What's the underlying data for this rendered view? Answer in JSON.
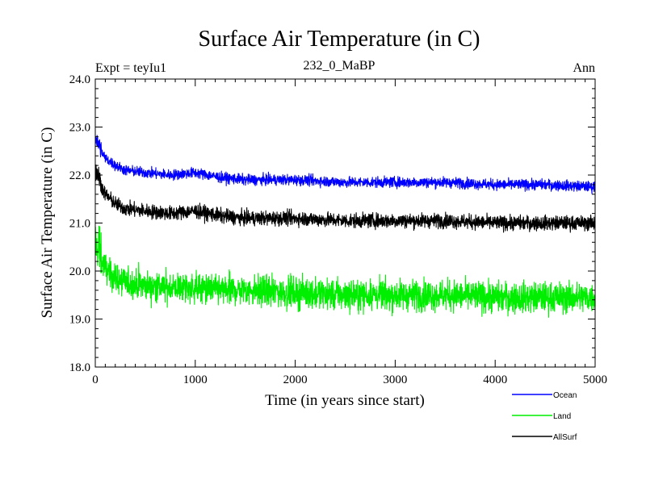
{
  "chart_data": {
    "type": "line",
    "title": "Surface Air Temperature (in C)",
    "subtitle": "232_0_MaBP",
    "left_label": "Expt = teyIu1",
    "right_label": "Ann",
    "xlabel": "Time (in years since start)",
    "ylabel": "Surface Air Temperature (in C)",
    "xlim": [
      0,
      5000
    ],
    "ylim": [
      18.0,
      24.0
    ],
    "x_ticks": [
      0,
      1000,
      2000,
      3000,
      4000,
      5000
    ],
    "x_tick_labels": [
      "0",
      "1000",
      "2000",
      "3000",
      "4000",
      "5000"
    ],
    "y_ticks": [
      18.0,
      19.0,
      20.0,
      21.0,
      22.0,
      23.0,
      24.0
    ],
    "y_tick_labels": [
      "18.0",
      "19.0",
      "20.0",
      "21.0",
      "22.0",
      "23.0",
      "24.0"
    ],
    "grid": false,
    "legend_position": "bottom-right",
    "series": [
      {
        "name": "Ocean",
        "color": "#0000ff",
        "x": [
          0,
          100,
          200,
          300,
          500,
          750,
          1000,
          1250,
          1500,
          2000,
          2500,
          3000,
          3500,
          4000,
          4500,
          5000
        ],
        "values": [
          22.7,
          22.35,
          22.2,
          22.1,
          22.05,
          22.0,
          22.05,
          21.95,
          21.9,
          21.9,
          21.85,
          21.85,
          21.85,
          21.8,
          21.8,
          21.75
        ],
        "noise": 0.11
      },
      {
        "name": "Land",
        "color": "#00ee00",
        "x": [
          0,
          100,
          200,
          300,
          500,
          750,
          1000,
          1250,
          1500,
          2000,
          2500,
          3000,
          3500,
          4000,
          4500,
          5000
        ],
        "values": [
          20.4,
          20.05,
          19.85,
          19.75,
          19.7,
          19.65,
          19.65,
          19.6,
          19.6,
          19.55,
          19.5,
          19.5,
          19.5,
          19.45,
          19.45,
          19.45
        ],
        "noise": 0.32
      },
      {
        "name": "AllSurf",
        "color": "#000000",
        "x": [
          0,
          100,
          200,
          300,
          500,
          750,
          1000,
          1250,
          1500,
          2000,
          2500,
          3000,
          3500,
          4000,
          4500,
          5000
        ],
        "values": [
          22.0,
          21.6,
          21.4,
          21.3,
          21.25,
          21.2,
          21.25,
          21.15,
          21.1,
          21.1,
          21.05,
          21.05,
          21.05,
          21.0,
          21.0,
          21.0
        ],
        "noise": 0.15
      }
    ]
  }
}
